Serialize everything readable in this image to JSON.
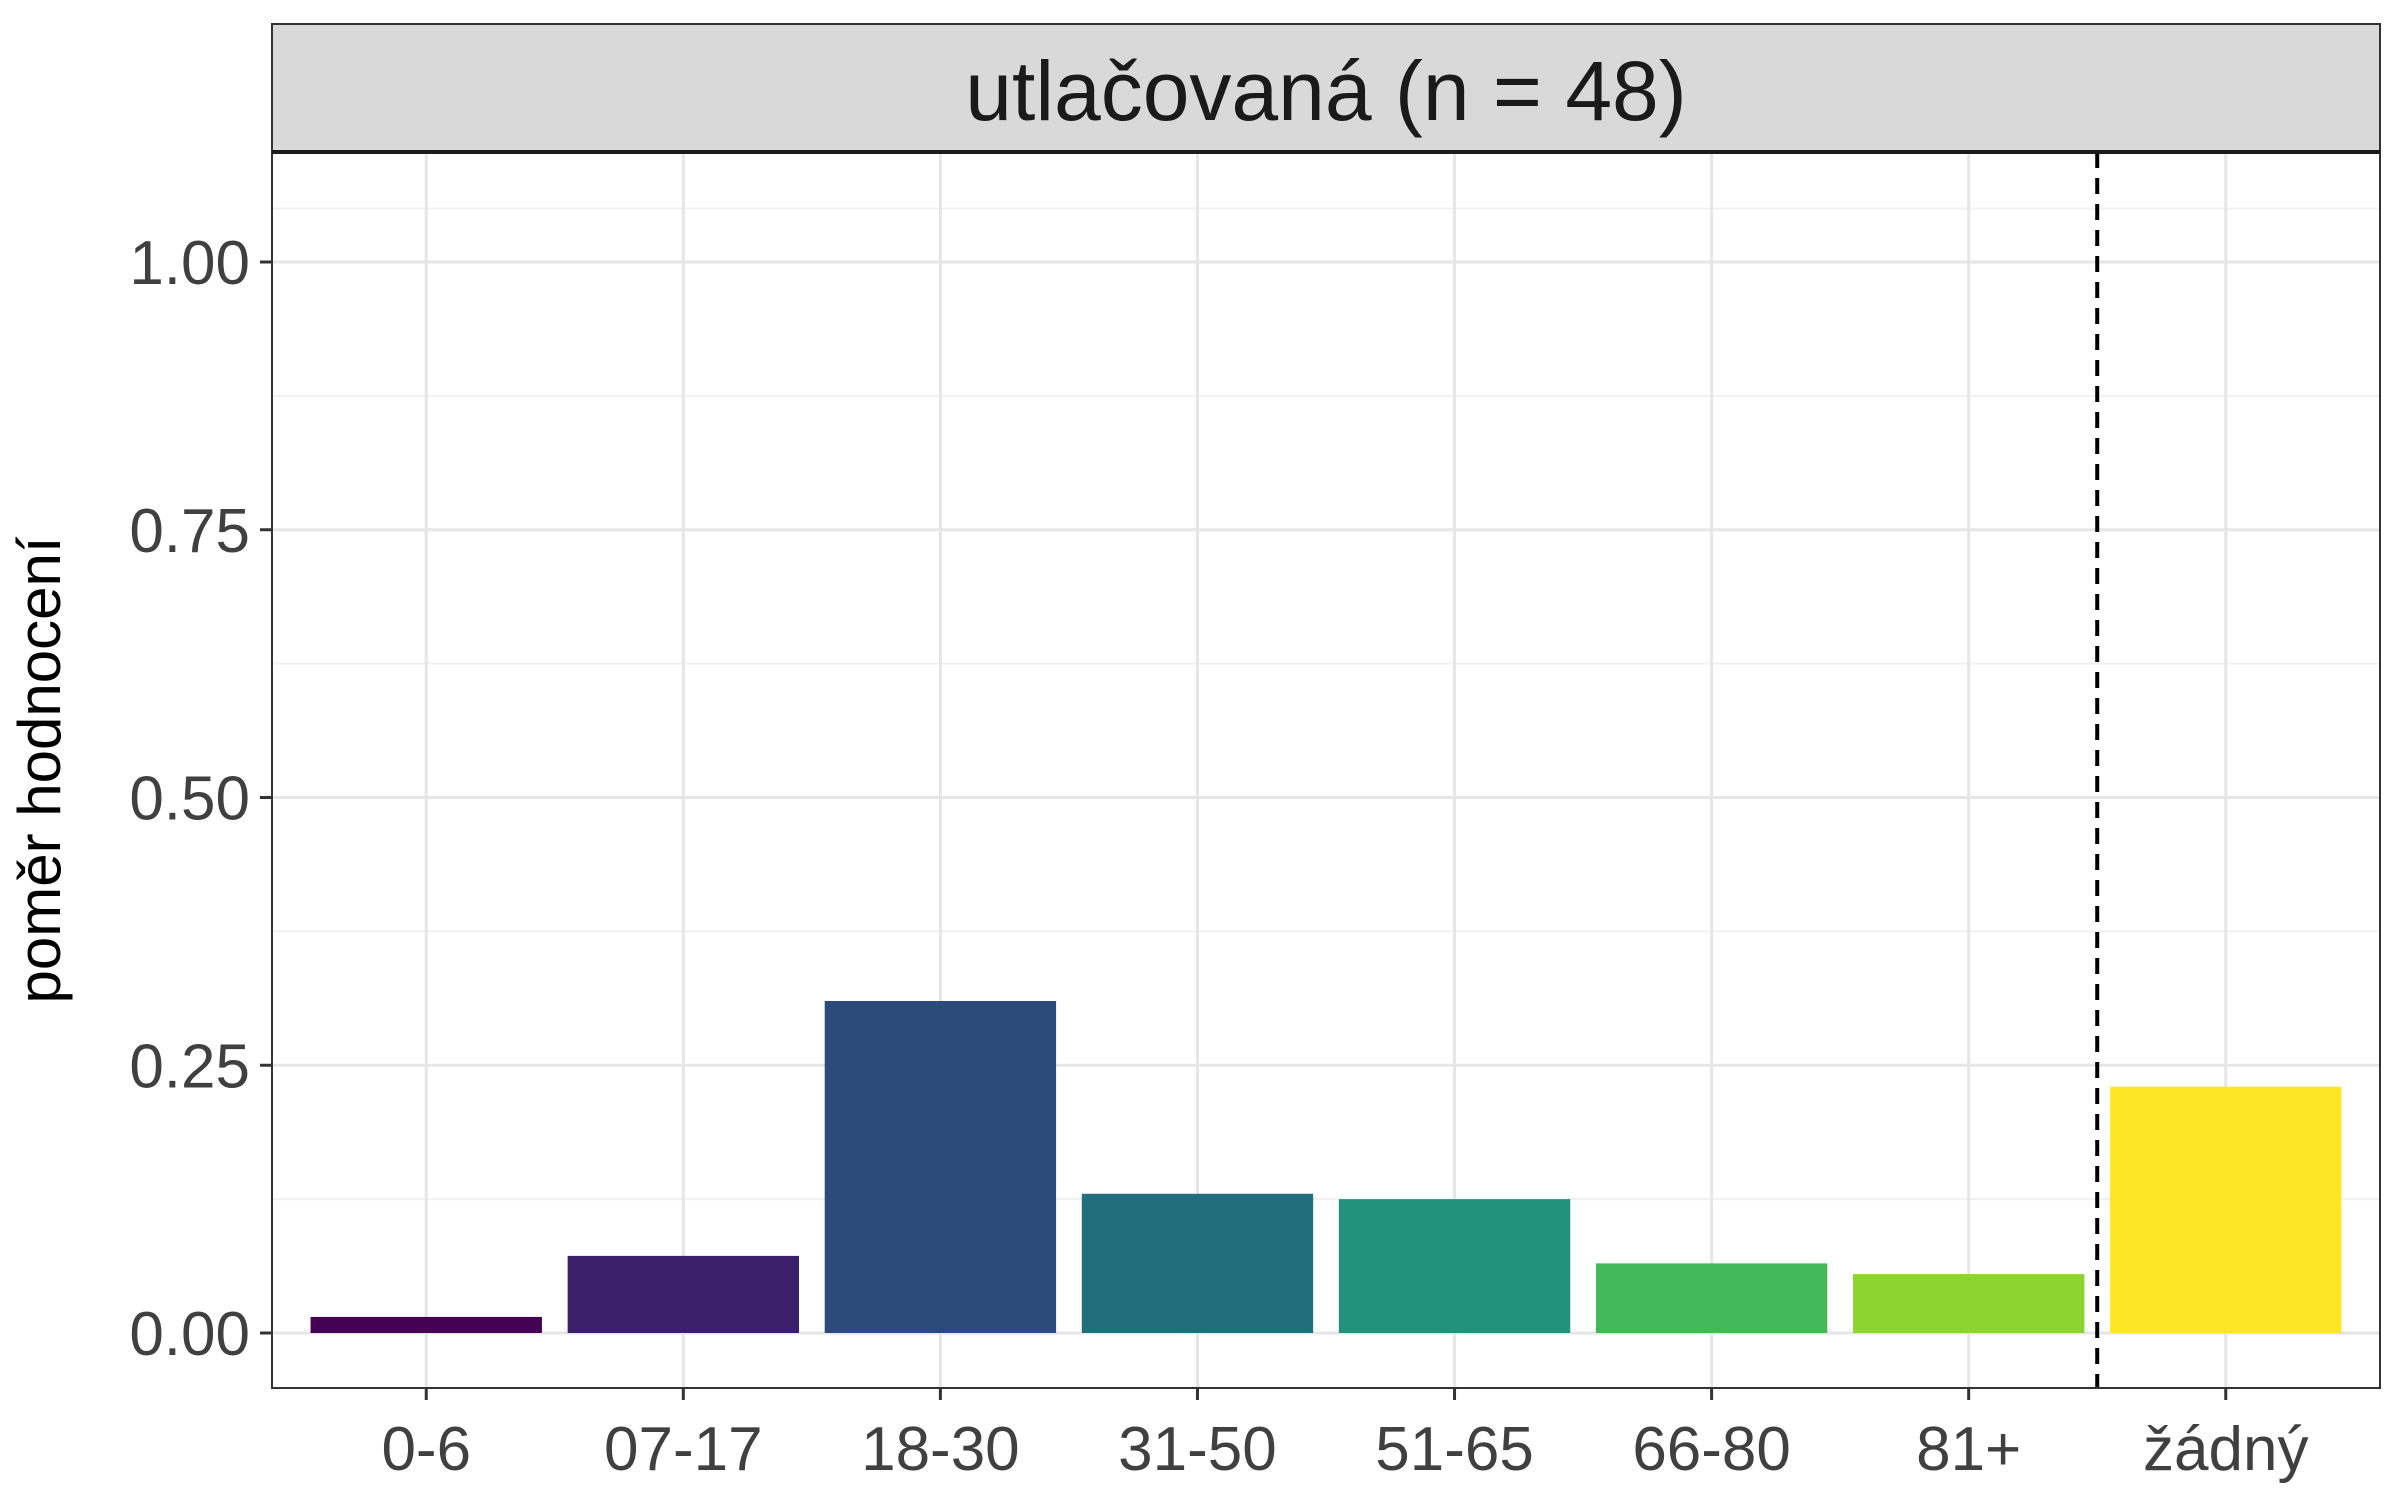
{
  "chart_data": {
    "type": "bar",
    "title": "utlačovaná (n = 48)",
    "xlabel": "",
    "ylabel": "poměr hodnocení",
    "categories": [
      "0-6",
      "07-17",
      "18-30",
      "31-50",
      "51-65",
      "66-80",
      "81+",
      "žádný"
    ],
    "values": [
      0.015,
      0.072,
      0.31,
      0.13,
      0.125,
      0.065,
      0.055,
      0.23
    ],
    "colors": [
      "#440154",
      "#3B1F6A",
      "#2C4A7A",
      "#236E7D",
      "#22937A",
      "#43B85A",
      "#8DD431",
      "#FDE725"
    ],
    "ylim": [
      -0.05,
      1.1
    ],
    "yticks": [
      0.0,
      0.25,
      0.5,
      0.75,
      1.0
    ],
    "ytick_labels": [
      "0.00",
      "0.25",
      "0.50",
      "0.75",
      "1.00"
    ],
    "yminor": [
      0.125,
      0.375,
      0.625,
      0.875,
      1.05
    ],
    "separator_after_category": "81+",
    "grid": true,
    "legend": "none"
  }
}
